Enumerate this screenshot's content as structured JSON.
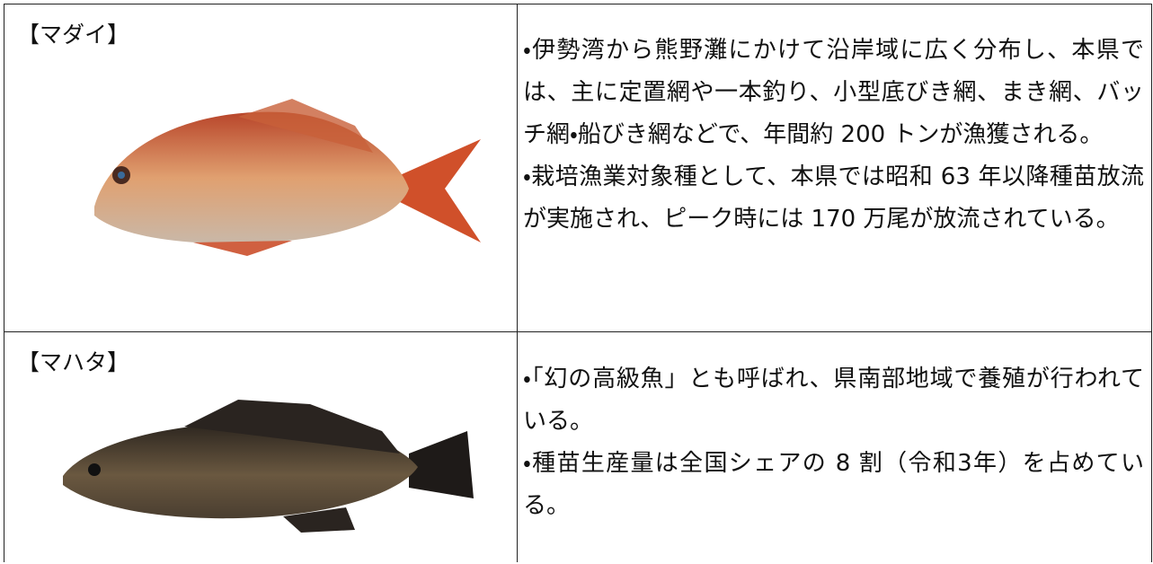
{
  "rows": [
    {
      "name": "【マダイ】",
      "bullets": [
        "・伊勢湾から熊野灘にかけて沿岸域に広く分布し、本県では、主に定置網や一本釣り、小型底びき網、まき網、バッチ網・船びき網などで、年間約 200 トンが漁獲される。",
        "・栽培漁業対象種として、本県では昭和 63 年以降種苗放流が実施され、ピーク時には 170 万尾が放流されている。"
      ]
    },
    {
      "name": "【マハタ】",
      "bullets": [
        "・「幻の高級魚」とも呼ばれ、県南部地域で養殖が行われている。",
        "・種苗生産量は全国シェアの 8 割（令和3年）を占めている。"
      ]
    }
  ]
}
